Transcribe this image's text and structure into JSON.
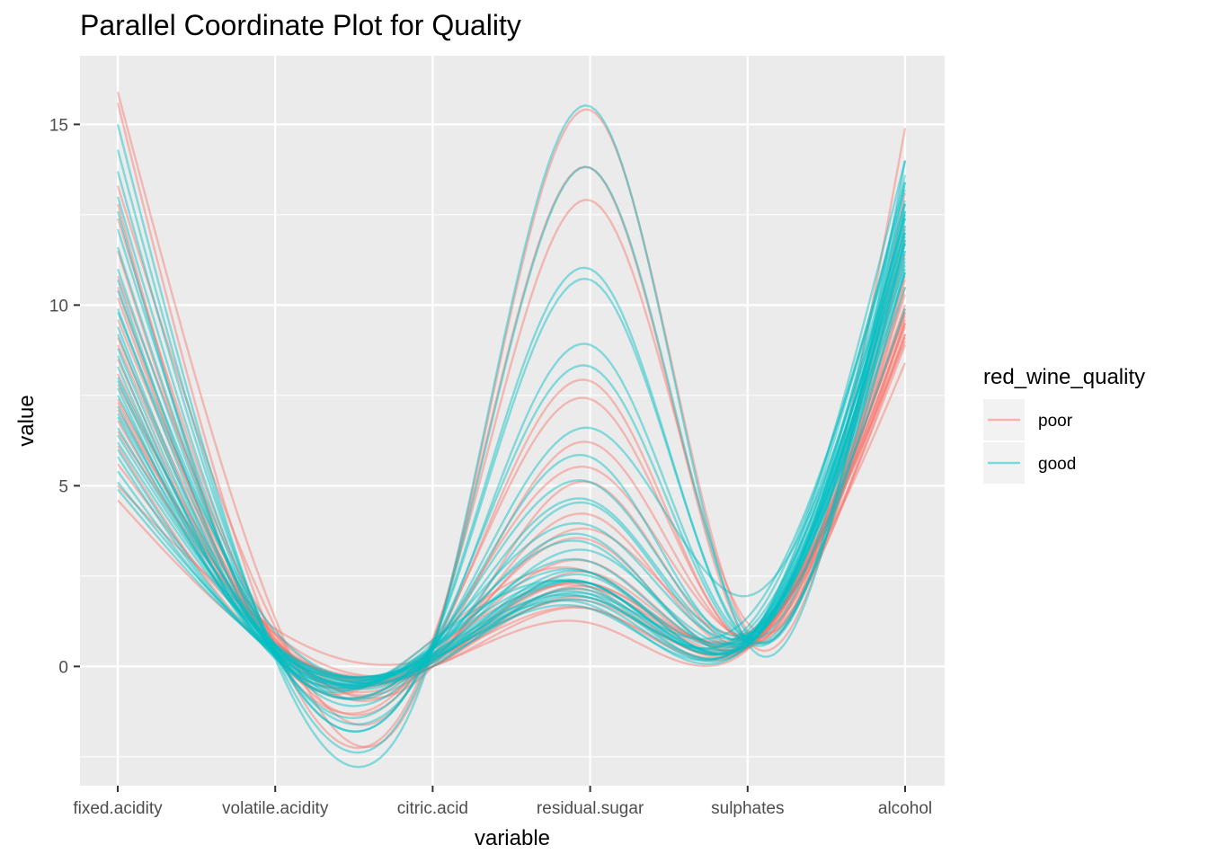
{
  "chart_data": {
    "type": "line",
    "title": "Parallel Coordinate Plot for Quality",
    "xlabel": "variable",
    "ylabel": "value",
    "categories": [
      "fixed.acidity",
      "volatile.acidity",
      "citric.acid",
      "residual.sugar",
      "sulphates",
      "alcohol"
    ],
    "ylim": [
      -3.3,
      16.9
    ],
    "yticks": [
      0,
      5,
      10,
      15
    ],
    "grid": true,
    "smooth": true,
    "legend": {
      "title": "red_wine_quality",
      "position": "right",
      "entries": [
        {
          "name": "poor",
          "color": "#F8766D"
        },
        {
          "name": "good",
          "color": "#00BFC4"
        }
      ]
    },
    "series": [
      {
        "name": "poor",
        "values": [
          15.9,
          1.33,
          0.49,
          15.4,
          0.98,
          14.9
        ]
      },
      {
        "name": "poor",
        "values": [
          15.6,
          0.58,
          0.66,
          13.8,
          0.71,
          13.1
        ]
      },
      {
        "name": "poor",
        "values": [
          13.3,
          1.09,
          0.76,
          12.9,
          1.2,
          11.8
        ]
      },
      {
        "name": "poor",
        "values": [
          12.4,
          0.59,
          0.49,
          7.9,
          0.66,
          12.2
        ]
      },
      {
        "name": "poor",
        "values": [
          11.5,
          0.3,
          0.6,
          7.4,
          0.68,
          10.5
        ]
      },
      {
        "name": "poor",
        "values": [
          10.8,
          0.89,
          0.3,
          6.2,
          0.72,
          9.6
        ]
      },
      {
        "name": "poor",
        "values": [
          10.2,
          0.42,
          0.57,
          5.5,
          0.82,
          9.2
        ]
      },
      {
        "name": "poor",
        "values": [
          9.6,
          0.77,
          0.12,
          4.2,
          0.58,
          10.8
        ]
      },
      {
        "name": "poor",
        "values": [
          8.9,
          0.62,
          0.18,
          3.8,
          0.93,
          9.5
        ]
      },
      {
        "name": "poor",
        "values": [
          8.1,
          0.56,
          0.28,
          2.9,
          0.59,
          9.9
        ]
      },
      {
        "name": "poor",
        "values": [
          7.8,
          0.88,
          0.0,
          2.6,
          0.68,
          9.8
        ]
      },
      {
        "name": "poor",
        "values": [
          7.4,
          0.7,
          0.0,
          1.9,
          0.56,
          9.4
        ]
      },
      {
        "name": "poor",
        "values": [
          7.3,
          0.65,
          0.0,
          1.2,
          0.47,
          10.0
        ]
      },
      {
        "name": "poor",
        "values": [
          6.8,
          0.61,
          0.2,
          1.8,
          0.63,
          9.1
        ]
      },
      {
        "name": "poor",
        "values": [
          6.5,
          0.9,
          0.0,
          1.6,
          0.52,
          9.2
        ]
      },
      {
        "name": "poor",
        "values": [
          6.1,
          0.4,
          0.31,
          2.3,
          0.79,
          8.4
        ]
      },
      {
        "name": "poor",
        "values": [
          5.6,
          0.66,
          0.0,
          2.2,
          0.52,
          8.9
        ]
      },
      {
        "name": "poor",
        "values": [
          5.0,
          1.04,
          0.24,
          1.6,
          0.5,
          9.5
        ]
      },
      {
        "name": "poor",
        "values": [
          4.6,
          0.52,
          0.15,
          2.1,
          0.54,
          10.3
        ]
      },
      {
        "name": "poor",
        "values": [
          9.1,
          0.77,
          0.3,
          3.5,
          0.57,
          11.4
        ]
      },
      {
        "name": "poor",
        "values": [
          8.5,
          0.49,
          0.11,
          2.3,
          0.84,
          9.7
        ]
      },
      {
        "name": "poor",
        "values": [
          10.5,
          0.36,
          0.47,
          2.2,
          0.92,
          9.0
        ]
      },
      {
        "name": "poor",
        "values": [
          7.1,
          0.71,
          0.0,
          5.1,
          0.52,
          10.7
        ]
      },
      {
        "name": "poor",
        "values": [
          12.8,
          0.3,
          0.74,
          2.6,
          0.64,
          9.8
        ]
      },
      {
        "name": "good",
        "values": [
          15.0,
          0.21,
          0.44,
          15.5,
          0.63,
          14.0
        ]
      },
      {
        "name": "good",
        "values": [
          14.3,
          0.31,
          0.53,
          13.8,
          0.9,
          13.4
        ]
      },
      {
        "name": "good",
        "values": [
          13.7,
          0.45,
          0.68,
          11.0,
          0.68,
          12.6
        ]
      },
      {
        "name": "good",
        "values": [
          13.0,
          0.36,
          0.62,
          10.7,
          0.76,
          11.9
        ]
      },
      {
        "name": "good",
        "values": [
          12.1,
          0.4,
          0.42,
          8.9,
          0.79,
          12.8
        ]
      },
      {
        "name": "good",
        "values": [
          11.6,
          0.32,
          0.58,
          8.3,
          0.67,
          11.0
        ]
      },
      {
        "name": "good",
        "values": [
          11.0,
          0.48,
          0.49,
          6.6,
          1.95,
          12.5
        ]
      },
      {
        "name": "good",
        "values": [
          10.4,
          0.61,
          0.49,
          5.8,
          0.74,
          13.6
        ]
      },
      {
        "name": "good",
        "values": [
          9.9,
          0.35,
          0.55,
          5.1,
          0.89,
          12.4
        ]
      },
      {
        "name": "good",
        "values": [
          9.4,
          0.3,
          0.47,
          4.6,
          0.82,
          11.8
        ]
      },
      {
        "name": "good",
        "values": [
          8.8,
          0.41,
          0.64,
          3.9,
          0.86,
          11.2
        ]
      },
      {
        "name": "good",
        "values": [
          8.3,
          0.28,
          0.53,
          3.4,
          0.74,
          12.2
        ]
      },
      {
        "name": "good",
        "values": [
          7.9,
          0.35,
          0.46,
          2.9,
          0.89,
          12.0
        ]
      },
      {
        "name": "good",
        "values": [
          7.5,
          0.52,
          0.16,
          2.6,
          0.62,
          11.7
        ]
      },
      {
        "name": "good",
        "values": [
          7.2,
          0.38,
          0.38,
          2.3,
          0.72,
          11.3
        ]
      },
      {
        "name": "good",
        "values": [
          6.9,
          0.48,
          0.2,
          2.0,
          1.36,
          12.9
        ]
      },
      {
        "name": "good",
        "values": [
          6.6,
          0.62,
          0.2,
          1.9,
          1.1,
          13.2
        ]
      },
      {
        "name": "good",
        "values": [
          6.2,
          0.56,
          0.09,
          1.8,
          0.56,
          11.5
        ]
      },
      {
        "name": "good",
        "values": [
          5.8,
          0.36,
          0.26,
          1.6,
          0.75,
          12.4
        ]
      },
      {
        "name": "good",
        "values": [
          5.4,
          0.42,
          0.27,
          2.0,
          0.69,
          12.8
        ]
      },
      {
        "name": "good",
        "values": [
          5.1,
          0.51,
          0.18,
          2.3,
          0.79,
          13.4
        ]
      },
      {
        "name": "good",
        "values": [
          4.9,
          0.42,
          0.0,
          2.1,
          0.74,
          14.0
        ]
      },
      {
        "name": "good",
        "values": [
          7.7,
          0.26,
          0.3,
          1.7,
          0.58,
          12.1
        ]
      },
      {
        "name": "good",
        "values": [
          8.6,
          0.22,
          0.36,
          1.9,
          0.99,
          11.7
        ]
      },
      {
        "name": "good",
        "values": [
          9.2,
          0.43,
          0.52,
          2.3,
          0.81,
          11.5
        ]
      },
      {
        "name": "good",
        "values": [
          10.7,
          0.35,
          0.53,
          2.6,
          0.84,
          11.1
        ]
      },
      {
        "name": "good",
        "values": [
          6.4,
          0.57,
          0.12,
          2.5,
          0.58,
          10.9
        ]
      },
      {
        "name": "good",
        "values": [
          12.6,
          0.31,
          0.72,
          2.2,
          0.66,
          10.5
        ]
      },
      {
        "name": "good",
        "values": [
          6.0,
          0.31,
          0.47,
          3.6,
          0.6,
          12.6
        ]
      },
      {
        "name": "good",
        "values": [
          7.0,
          0.6,
          0.3,
          4.5,
          0.68,
          12.0
        ]
      },
      {
        "name": "good",
        "values": [
          8.0,
          0.57,
          0.23,
          3.2,
          0.72,
          9.9
        ]
      },
      {
        "name": "good",
        "values": [
          9.8,
          0.98,
          0.32,
          2.3,
          0.62,
          10.9
        ]
      }
    ]
  }
}
